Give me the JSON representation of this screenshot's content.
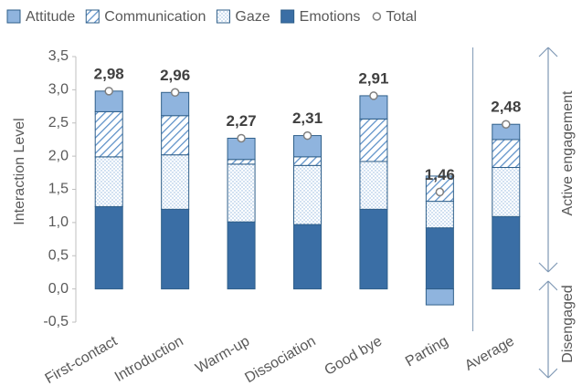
{
  "chart_data": {
    "type": "bar",
    "stacked": true,
    "y_label": "Interaction Level",
    "categories": [
      "First-contact",
      "Introduction",
      "Warm-up",
      "Dissociation",
      "Good bye",
      "Parting",
      "Average"
    ],
    "series": [
      {
        "name": "Attitude",
        "color": "#8fb4de",
        "fill_pattern": "solid",
        "values": [
          0.31,
          0.35,
          0.32,
          0.32,
          0.35,
          -0.24,
          0.23
        ]
      },
      {
        "name": "Communication",
        "color": "#5b8fc7",
        "fill_pattern": "hatch",
        "values": [
          0.68,
          0.59,
          0.07,
          0.13,
          0.64,
          0.38,
          0.42
        ]
      },
      {
        "name": "Gaze",
        "color": "#8fb4de",
        "fill_pattern": "dots",
        "values": [
          0.75,
          0.82,
          0.87,
          0.89,
          0.72,
          0.4,
          0.74
        ]
      },
      {
        "name": "Emotions",
        "color": "#3a6ea5",
        "fill_pattern": "solid",
        "values": [
          1.24,
          1.2,
          1.01,
          0.97,
          1.2,
          0.92,
          1.09
        ]
      },
      {
        "name": "Total",
        "color": "#7f7f7f",
        "marker": true,
        "values": [
          2.98,
          2.96,
          2.27,
          2.31,
          2.91,
          1.46,
          2.48
        ],
        "value_labels": [
          "2,98",
          "2,96",
          "2,27",
          "2,31",
          "2,91",
          "1,46",
          "2,48"
        ]
      }
    ],
    "ylim": [
      -0.5,
      3.5
    ],
    "yticks": [
      {
        "value": -0.5,
        "label": "-0,5"
      },
      {
        "value": 0,
        "label": "0,0"
      },
      {
        "value": 0.5,
        "label": "0,5"
      },
      {
        "value": 1,
        "label": "1,0"
      },
      {
        "value": 1.5,
        "label": "1,5"
      },
      {
        "value": 2,
        "label": "2,0"
      },
      {
        "value": 2.5,
        "label": "2,5"
      },
      {
        "value": 3,
        "label": "3,0"
      },
      {
        "value": 3.5,
        "label": "3,5"
      }
    ],
    "grid": false,
    "legend": "top",
    "annotations": [
      "Active engagement",
      "Disengaged"
    ]
  }
}
